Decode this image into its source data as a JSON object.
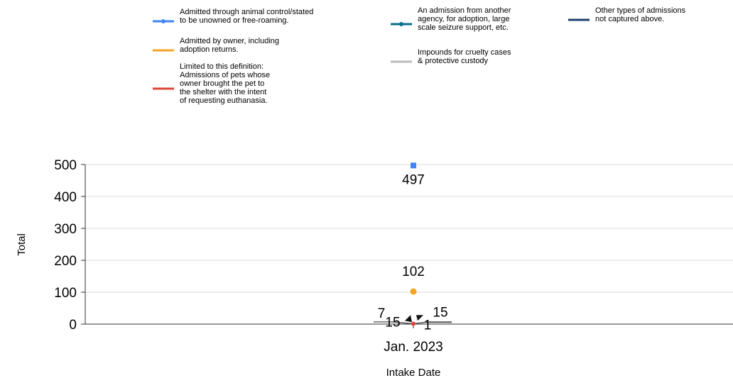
{
  "chart_data": {
    "type": "scatter",
    "xlabel": "Intake Date",
    "ylabel": "Total",
    "categories": [
      "Jan. 2023"
    ],
    "ylim": [
      0,
      500
    ],
    "yticks": [
      0,
      100,
      200,
      300,
      400,
      500
    ],
    "grid": true,
    "legend_position": "top",
    "series": [
      {
        "name": "Admitted through animal control/stated to be unowned or free-roaming.",
        "color": "#4285f4",
        "marker": "square",
        "values": [
          497
        ],
        "label": "497"
      },
      {
        "name": "Admitted by owner, including adoption returns.",
        "color": "#f5a623",
        "marker": "circle",
        "values": [
          102
        ],
        "label": "102"
      },
      {
        "name": "Limited to this definition: Admissions of pets whose owner brought the pet to the shelter with the intent of requesting euthanasia.",
        "color": "#db4437",
        "marker": "circle",
        "values": [
          1
        ],
        "label": "1"
      },
      {
        "name": "An admission from another agency, for adoption, large scale seizure support, etc.",
        "color": "#0b6e8a",
        "marker": "triangle",
        "values": [
          15
        ],
        "label": "15"
      },
      {
        "name": "Impounds for cruelty cases & protective custody",
        "color": "#bbbbbb",
        "marker": "triangle",
        "values": [
          7
        ],
        "label": "7"
      },
      {
        "name": "Other types of admissions not captured above.",
        "color": "#1c3f6e",
        "marker": "triangle",
        "values": [
          15
        ],
        "label": "15"
      }
    ]
  }
}
